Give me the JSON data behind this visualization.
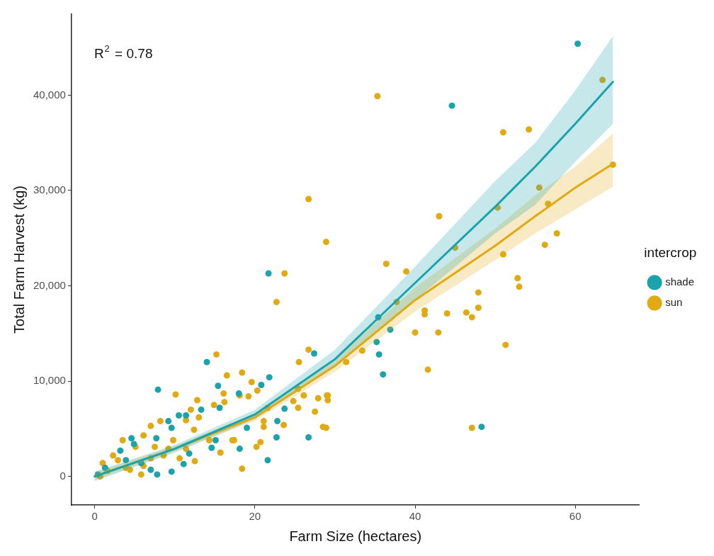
{
  "chart_data": {
    "type": "scatter",
    "xlabel": "Farm Size (hectares)",
    "ylabel": "Total Farm Harvest (kg)",
    "legend_title": "intercrop",
    "legend": "right",
    "grid": false,
    "marker": "circle",
    "line_style": "solid",
    "xlim": [
      -2.9,
      68
    ],
    "xticks": [
      0,
      20,
      40,
      60
    ],
    "ylim": [
      -3000,
      48500
    ],
    "yticks": [
      {
        "value": 0,
        "label": "0"
      },
      {
        "value": 10000,
        "label": "10,000"
      },
      {
        "value": 20000,
        "label": "20,000"
      },
      {
        "value": 30000,
        "label": "30,000"
      },
      {
        "value": 40000,
        "label": "40,000"
      }
    ],
    "annotations": [
      "R$^{2}$ = 0.78"
    ],
    "series": [
      {
        "name": "shade",
        "color": "#1ba3ab",
        "x": [
          60.3,
          44.6,
          48.3,
          21.7,
          14.0,
          7.9,
          35.4,
          36.9,
          35.2,
          35.5,
          36.0,
          27.4,
          21.8,
          15.4,
          20.8,
          18.0,
          23.7,
          22.8,
          22.7,
          26.7,
          21.6,
          18.1,
          15.1,
          13.3,
          15.6,
          10.5,
          11.4,
          9.2,
          9.6,
          7.7,
          19.0,
          14.6,
          11.8,
          11.1,
          4.6,
          4.9,
          3.2,
          3.9,
          5.8,
          7.8,
          1.3,
          0.4,
          9.6,
          7.0
        ],
        "values": [
          45400,
          38900,
          5200,
          21300,
          12000,
          9100,
          16700,
          15400,
          14100,
          12800,
          10700,
          12900,
          10400,
          9500,
          9600,
          8700,
          7100,
          5800,
          4100,
          4100,
          1700,
          2900,
          3800,
          7000,
          7200,
          6400,
          6400,
          5800,
          5100,
          4000,
          5100,
          3000,
          2400,
          1300,
          4000,
          3400,
          2700,
          1700,
          1400,
          200,
          900,
          200,
          500,
          700
        ]
      },
      {
        "name": "sun",
        "color": "#e0aa12",
        "x": [
          35.3,
          26.7,
          28.9,
          36.4,
          23.7,
          51.0,
          54.2,
          63.4,
          64.7,
          55.5,
          56.6,
          50.3,
          43.0,
          57.7,
          56.2,
          45.0,
          38.9,
          51.0,
          52.8,
          53.0,
          47.9,
          37.7,
          41.2,
          41.2,
          44.0,
          46.4,
          47.1,
          47.9,
          40.0,
          42.9,
          51.3,
          33.4,
          31.4,
          41.6,
          29.1,
          29.1,
          28.9,
          47.1,
          22.7,
          15.2,
          26.7,
          25.5,
          16.5,
          18.4,
          19.6,
          16.1,
          20.3,
          18.1,
          19.2,
          25.4,
          26.1,
          27.9,
          29.0,
          24.8,
          25.4,
          21.6,
          27.5,
          21.1,
          21.1,
          23.6,
          28.5,
          17.4,
          20.7,
          20.2,
          15.7,
          18.4,
          10.1,
          12.8,
          14.9,
          16.2,
          12.0,
          8.2,
          11.4,
          13.0,
          7.0,
          6.1,
          3.5,
          5.1,
          9.8,
          11.4,
          12.4,
          14.3,
          17.2,
          12.5,
          8.6,
          6.1,
          5.8,
          4.4,
          2.3,
          1.6,
          3.9,
          7.0,
          9.2,
          10.6,
          7.5,
          1.0,
          2.9,
          0.7
        ],
        "values": [
          39900,
          29100,
          24600,
          22300,
          21300,
          36100,
          36400,
          41600,
          32700,
          30300,
          28600,
          28200,
          27300,
          25500,
          24300,
          24000,
          21500,
          23300,
          20800,
          19900,
          19300,
          18300,
          17400,
          17000,
          17100,
          17200,
          16700,
          17700,
          15100,
          15100,
          13800,
          13200,
          12000,
          11200,
          8500,
          8000,
          5100,
          5100,
          18300,
          12800,
          13300,
          12000,
          10600,
          10900,
          9900,
          8700,
          9000,
          8500,
          8400,
          9200,
          8500,
          8200,
          8500,
          7900,
          7200,
          7200,
          6800,
          5800,
          5200,
          5400,
          5200,
          3800,
          3600,
          3100,
          2500,
          800,
          8600,
          8000,
          7500,
          7800,
          7000,
          5800,
          5900,
          6200,
          5300,
          4300,
          3800,
          3100,
          3800,
          2900,
          4900,
          3800,
          3800,
          1600,
          2200,
          1100,
          200,
          700,
          2200,
          600,
          900,
          1900,
          2900,
          1900,
          3100,
          1400,
          1700,
          0
        ]
      },
      {
        "type": "line",
        "marker": "none",
        "color": "#1ba3ab",
        "x": [
          0,
          10,
          20,
          30,
          40,
          50,
          55,
          60,
          64.7
        ],
        "values": [
          0,
          2900,
          6500,
          12300,
          20300,
          28300,
          32500,
          37000,
          41400
        ],
        "lower": [
          -500,
          2500,
          6000,
          11500,
          18500,
          25500,
          28500,
          33000,
          37000
        ],
        "upper": [
          500,
          3300,
          7000,
          13300,
          22000,
          31000,
          35000,
          40500,
          46200
        ]
      },
      {
        "type": "line",
        "marker": "none",
        "color": "#e0aa12",
        "x": [
          0,
          10,
          20,
          30,
          40,
          50,
          55,
          60,
          64.7
        ],
        "values": [
          0,
          2900,
          6200,
          11600,
          18500,
          24200,
          27300,
          30300,
          32800
        ],
        "lower": [
          -400,
          2600,
          5800,
          11000,
          17300,
          22700,
          25500,
          28000,
          30400
        ],
        "upper": [
          400,
          3200,
          6600,
          12300,
          19800,
          26000,
          29500,
          32500,
          36000
        ]
      }
    ]
  }
}
